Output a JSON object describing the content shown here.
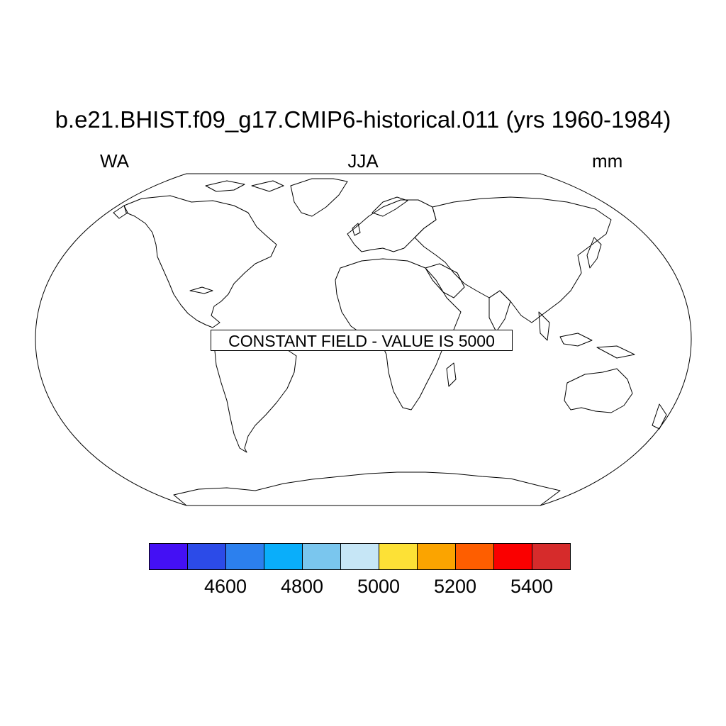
{
  "title": "b.e21.BHIST.f09_g17.CMIP6-historical.011 (yrs 1960-1984)",
  "subtitle": {
    "left": "WA",
    "center": "JJA",
    "right": "mm"
  },
  "notice": "CONSTANT FIELD - VALUE IS 5000",
  "colorbar": {
    "colors": [
      "#4410f4",
      "#2c4be8",
      "#2c80ee",
      "#0aaefa",
      "#7ac6ee",
      "#c6e6f6",
      "#fde136",
      "#fba400",
      "#fe5e00",
      "#fa0000",
      "#d62b2b"
    ],
    "labels": [
      "4600",
      "4800",
      "5000",
      "5200",
      "5400"
    ]
  },
  "map": {
    "projection": "robinson",
    "line_color": "#000000"
  }
}
